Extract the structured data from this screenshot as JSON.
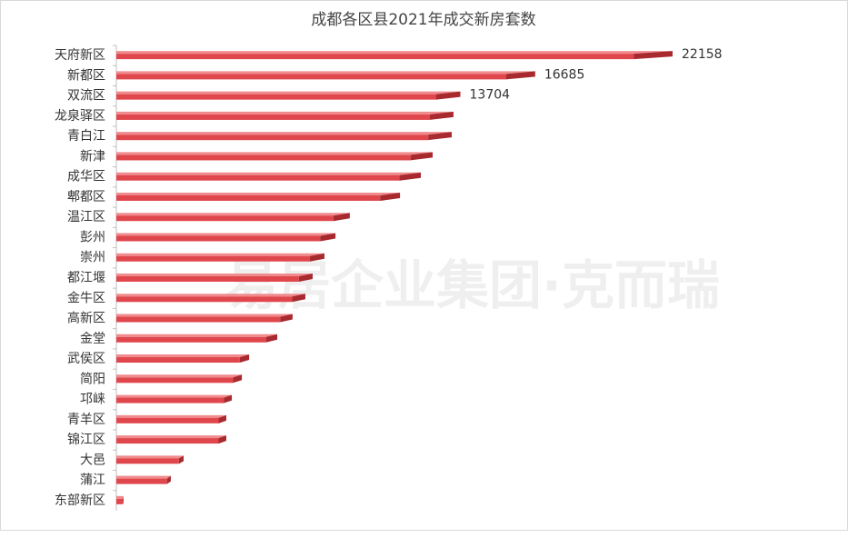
{
  "chart_data": {
    "type": "bar",
    "orientation": "horizontal",
    "title": "成都各区县2021年成交新房套数",
    "watermark": "易居企业集团·克而瑞",
    "categories": [
      "天府新区",
      "新都区",
      "双流区",
      "龙泉驿区",
      "青白江",
      "新津",
      "成华区",
      "郫都区",
      "温江区",
      "彭州",
      "崇州",
      "都江堰",
      "金牛区",
      "高新区",
      "金堂",
      "武侯区",
      "简阳",
      "邛崃",
      "青羊区",
      "锦江区",
      "大邑",
      "蒲江",
      "东部新区"
    ],
    "values": [
      22158,
      16685,
      13704,
      13430,
      13360,
      12600,
      12130,
      11300,
      9300,
      8730,
      8290,
      7820,
      7530,
      7020,
      6410,
      5290,
      5000,
      4600,
      4380,
      4380,
      2680,
      2170,
      290
    ],
    "value_labels": [
      "22158",
      "16685",
      "13704",
      null,
      null,
      null,
      null,
      null,
      null,
      null,
      null,
      null,
      null,
      null,
      null,
      null,
      null,
      null,
      null,
      null,
      null,
      null,
      null
    ],
    "color": "#e0474c",
    "xlim": [
      0,
      22158
    ]
  }
}
